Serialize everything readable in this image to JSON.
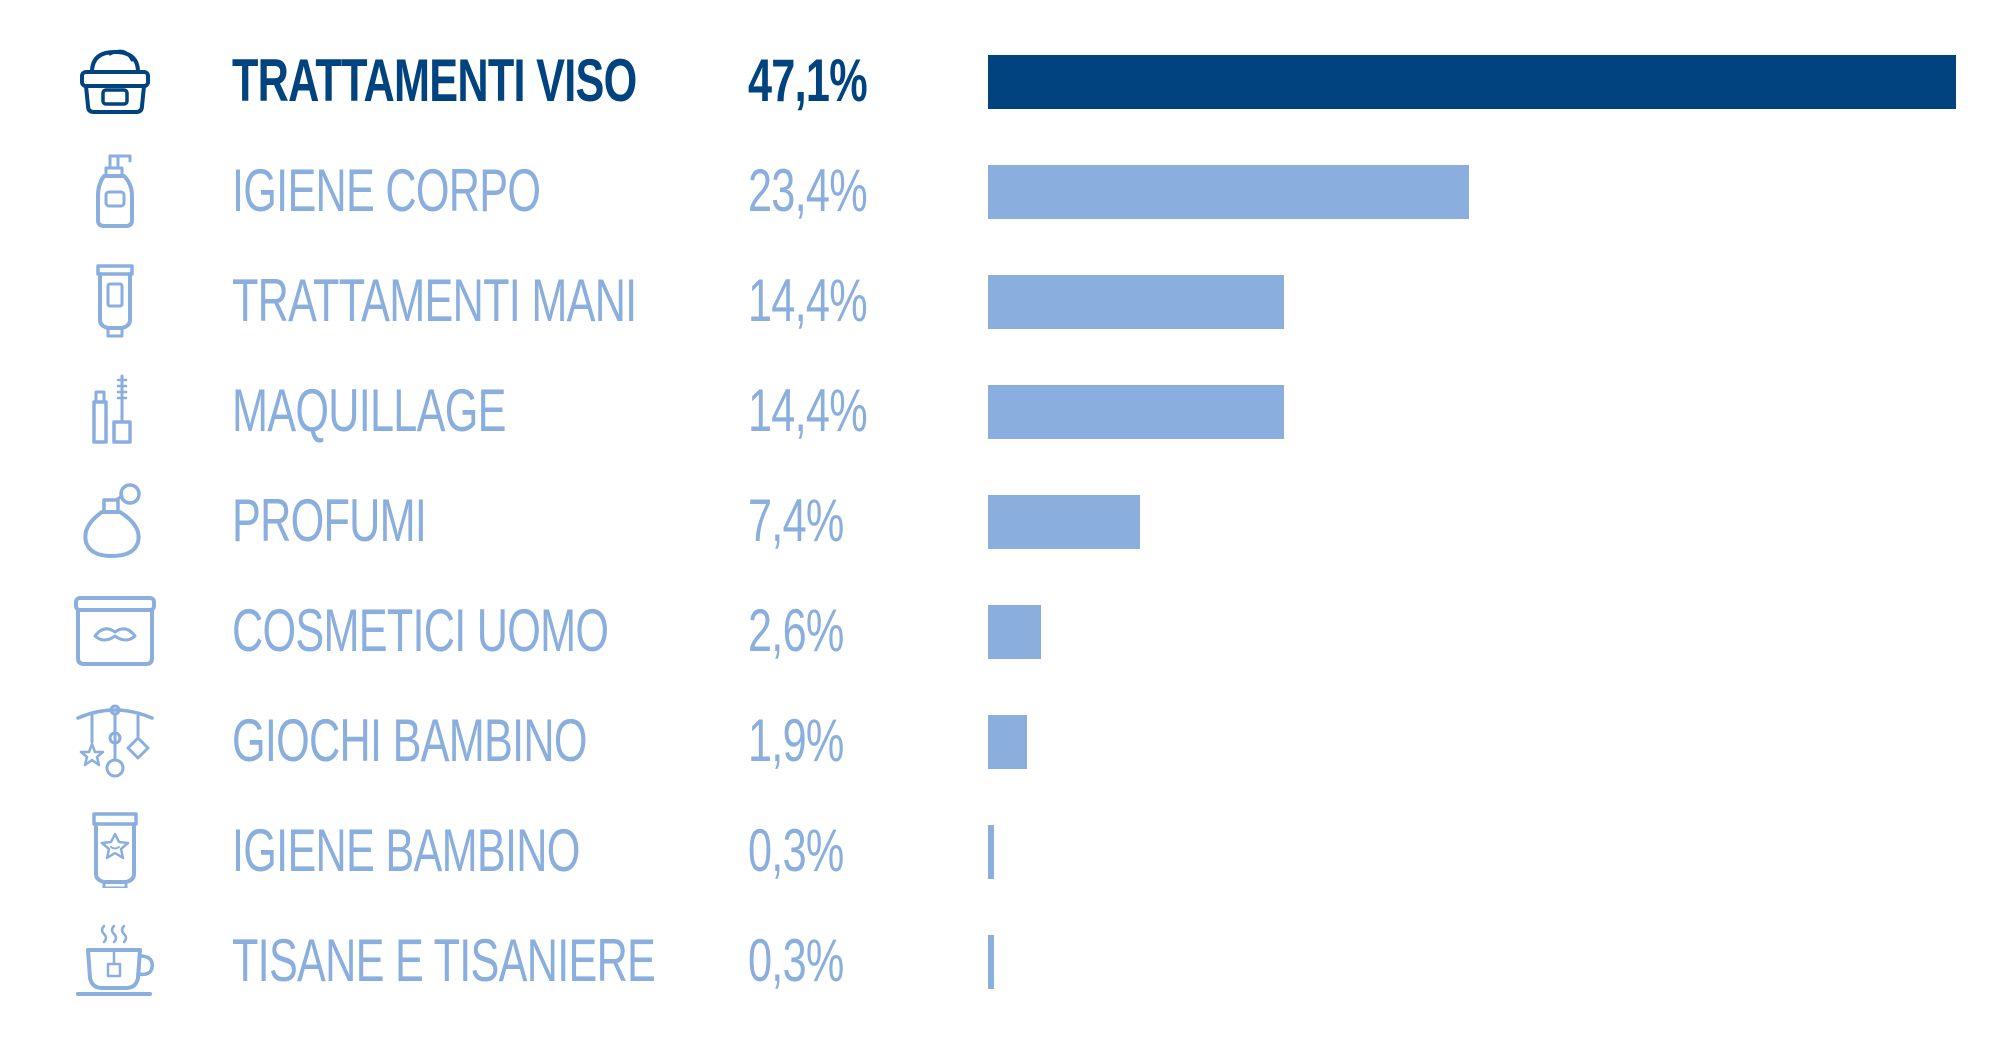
{
  "chart_data": {
    "type": "bar",
    "orientation": "horizontal",
    "title": "",
    "xlabel": "",
    "ylabel": "",
    "xlim": [
      0,
      47.1
    ],
    "grid": false,
    "legend": "none",
    "colors": {
      "highlight": "#00437f",
      "default": "#8aaedd"
    },
    "highlight_index": 0,
    "categories": [
      "TRATTAMENTI VISO",
      "IGIENE CORPO",
      "TRATTAMENTI MANI",
      "MAQUILLAGE",
      "PROFUMI",
      "COSMETICI UOMO",
      "GIOCHI BAMBINO",
      "IGIENE BAMBINO",
      "TISANE E TISANIERE"
    ],
    "values": [
      47.1,
      23.4,
      14.4,
      14.4,
      7.4,
      2.6,
      1.9,
      0.3,
      0.3
    ],
    "value_labels": [
      "47,1%",
      "23,4%",
      "14,4%",
      "14,4%",
      "7,4%",
      "2,6%",
      "1,9%",
      "0,3%",
      "0,3%"
    ],
    "icons": [
      "cream-jar-icon",
      "pump-bottle-icon",
      "hand-cream-tube-icon",
      "mascara-icon",
      "perfume-bottle-icon",
      "mustache-jar-icon",
      "baby-mobile-icon",
      "baby-lotion-tube-icon",
      "tea-cup-icon"
    ]
  }
}
